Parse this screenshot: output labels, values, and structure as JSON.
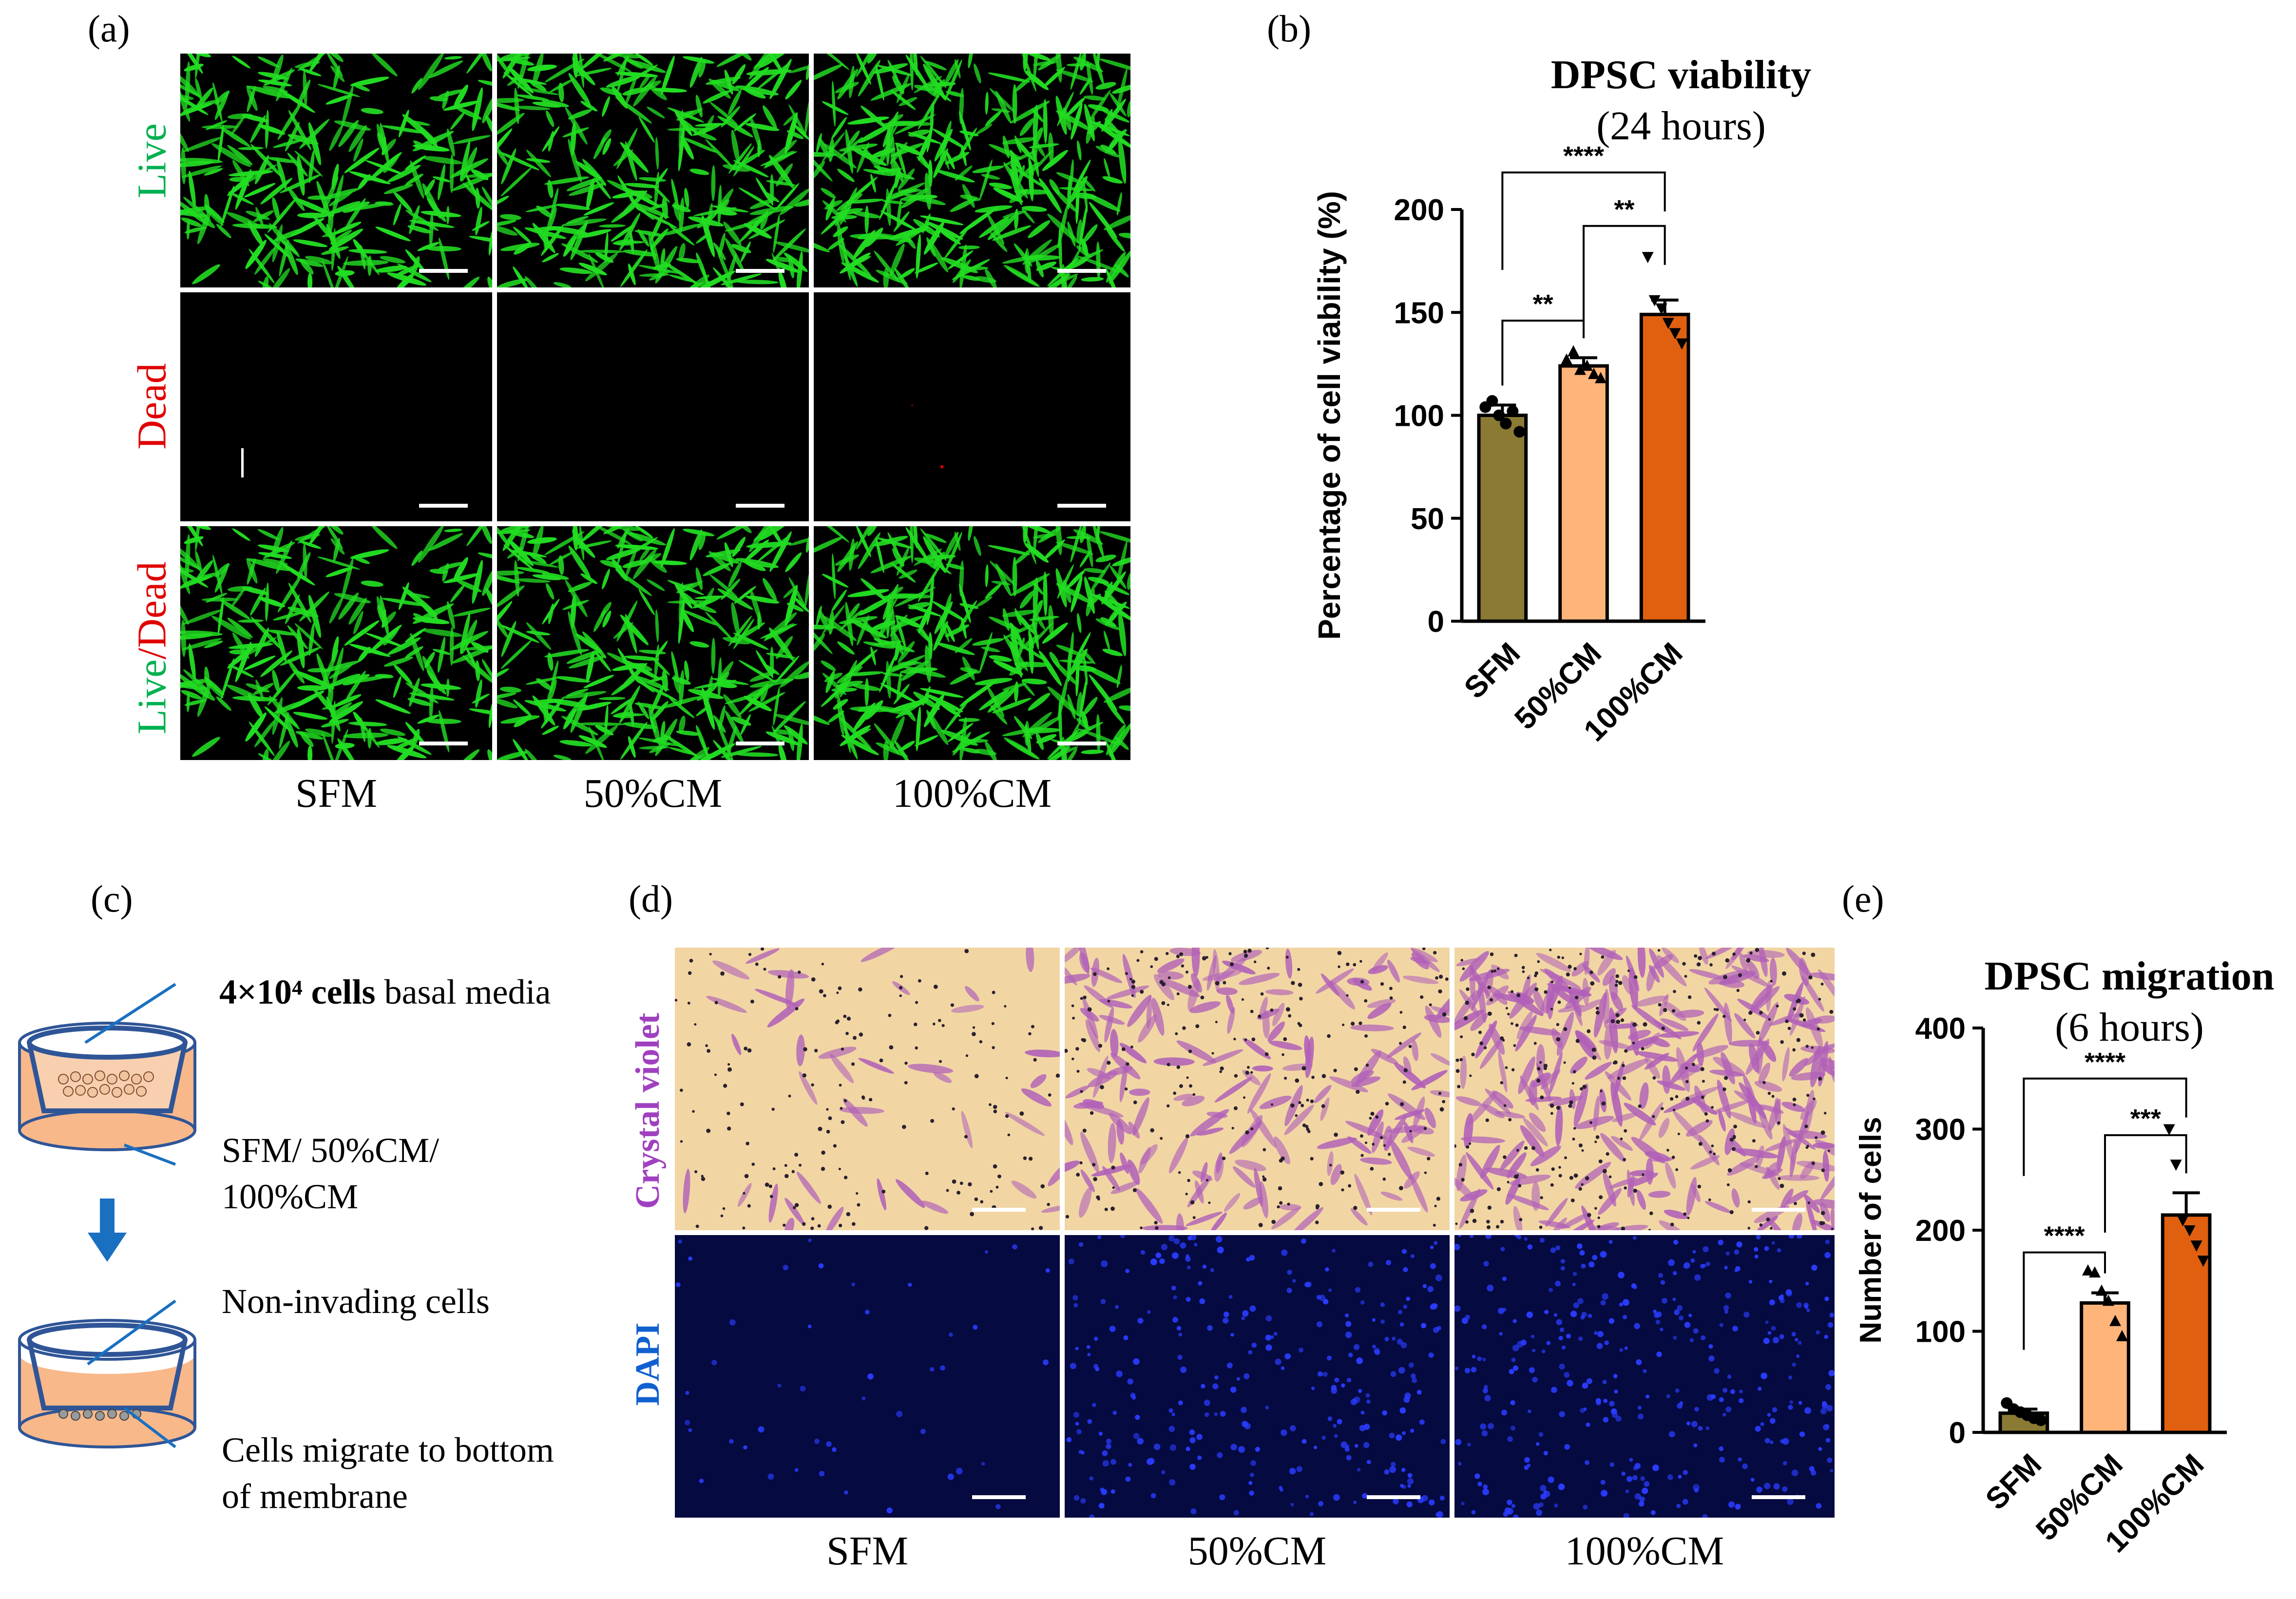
{
  "panels": {
    "a": "(a)",
    "b": "(b)",
    "c": "(c)",
    "d": "(d)",
    "e": "(e)"
  },
  "panel_a": {
    "rows": [
      {
        "parts": [
          {
            "text": "Live",
            "color": "#00b050"
          }
        ]
      },
      {
        "parts": [
          {
            "text": "Dead",
            "color": "#e00000"
          }
        ]
      },
      {
        "parts": [
          {
            "text": "Live",
            "color": "#00b050"
          },
          {
            "text": "/Dead",
            "color": "#e00000"
          }
        ]
      }
    ],
    "columns": [
      "SFM",
      "50%CM",
      "100%CM"
    ],
    "live_color": "#22dd22",
    "background": "#000000"
  },
  "panel_c": {
    "step1_bold": "4×10⁴ cells",
    "step1_rest": " basal media",
    "step2_line1": "SFM/ 50%CM/",
    "step2_line2": "100%CM",
    "step3": "Non-invading cells",
    "step4_line1": "Cells migrate to bottom",
    "step4_line2": "of membrane",
    "media_color": "#f8b88a",
    "insert_color": "#2f5597",
    "arrow_color": "#1a70c0"
  },
  "panel_d": {
    "rows": [
      {
        "label": "Crystal violet",
        "color": "#a040c0"
      },
      {
        "label": "DAPI",
        "color": "#1060d0"
      }
    ],
    "columns": [
      "SFM",
      "50%CM",
      "100%CM"
    ],
    "crystal_bg": "#f1d6a4",
    "crystal_cell": "#b060b8",
    "dapi_bg": "#050a40",
    "dapi_cell": "#2a3cff"
  },
  "chart_data": [
    {
      "type": "bar",
      "title": "DPSC viability",
      "subtitle": "(24 hours)",
      "ylabel": "Percentage of cell viability (%)",
      "xlabel": "",
      "categories": [
        "SFM",
        "50%CM",
        "100%CM"
      ],
      "values": [
        100,
        124,
        149
      ],
      "errors": [
        5,
        4,
        7
      ],
      "colors": [
        "#8a7a34",
        "#ffb47a",
        "#e06010"
      ],
      "points": [
        [
          104,
          107,
          100,
          96,
          102,
          92
        ],
        [
          127,
          131,
          122,
          124,
          120,
          118
        ],
        [
          177,
          156,
          152,
          145,
          140,
          135
        ]
      ],
      "ylim": [
        0,
        200
      ],
      "yticks": [
        0,
        50,
        100,
        150,
        200
      ],
      "significance": [
        {
          "from": 0,
          "to": 1,
          "label": "**",
          "y": 146
        },
        {
          "from": 1,
          "to": 2,
          "label": "**",
          "y": 192
        },
        {
          "from": 0,
          "to": 2,
          "label": "****",
          "y": 218
        }
      ]
    },
    {
      "type": "bar",
      "title": "DPSC migration",
      "subtitle": "(6 hours)",
      "ylabel": "Number of cells",
      "xlabel": "",
      "categories": [
        "SFM",
        "50%CM",
        "100%CM"
      ],
      "values": [
        19,
        128,
        215
      ],
      "errors": [
        4,
        10,
        22
      ],
      "colors": [
        "#8a7a34",
        "#ffb47a",
        "#e06010"
      ],
      "points": [
        [
          29,
          23,
          20,
          17,
          14,
          12
        ],
        [
          160,
          158,
          140,
          130,
          110,
          95
        ],
        [
          300,
          265,
          210,
          200,
          185,
          170
        ]
      ],
      "ylim": [
        0,
        400
      ],
      "yticks": [
        0,
        100,
        200,
        300,
        400
      ],
      "significance": [
        {
          "from": 0,
          "to": 1,
          "label": "****",
          "y": 178
        },
        {
          "from": 1,
          "to": 2,
          "label": "***",
          "y": 294
        },
        {
          "from": 0,
          "to": 2,
          "label": "****",
          "y": 350
        }
      ]
    }
  ]
}
